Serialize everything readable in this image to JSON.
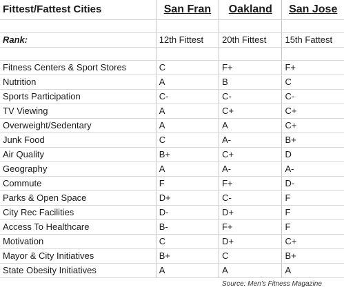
{
  "header": {
    "title": "Fittest/Fattest Cities",
    "cities": [
      "San Fran",
      "Oakland",
      "San Jose"
    ]
  },
  "rank": {
    "label": "Rank:",
    "values": [
      "12th Fittest",
      "20th Fittest",
      "15th Fattest"
    ]
  },
  "rows": [
    {
      "category": "Fitness Centers & Sport Stores",
      "grades": [
        "C",
        "F+",
        "F+"
      ]
    },
    {
      "category": "Nutrition",
      "grades": [
        "A",
        "B",
        "C"
      ]
    },
    {
      "category": "Sports Participation",
      "grades": [
        "C-",
        "C-",
        "C-"
      ]
    },
    {
      "category": "TV Viewing",
      "grades": [
        "A",
        "C+",
        "C+"
      ]
    },
    {
      "category": "Overweight/Sedentary",
      "grades": [
        "A",
        "A",
        "C+"
      ]
    },
    {
      "category": "Junk Food",
      "grades": [
        "C",
        "A-",
        "B+"
      ]
    },
    {
      "category": "Air Quality",
      "grades": [
        "B+",
        "C+",
        "D"
      ]
    },
    {
      "category": "Geography",
      "grades": [
        "A",
        "A-",
        "A-"
      ]
    },
    {
      "category": "Commute",
      "grades": [
        "F",
        "F+",
        "D-"
      ]
    },
    {
      "category": "Parks & Open Space",
      "grades": [
        "D+",
        "C-",
        "F"
      ]
    },
    {
      "category": "City Rec Facilities",
      "grades": [
        "D-",
        "D+",
        "F"
      ]
    },
    {
      "category": "Access To Healthcare",
      "grades": [
        "B-",
        "F+",
        "F"
      ]
    },
    {
      "category": "Motivation",
      "grades": [
        "C",
        "D+",
        "C+"
      ]
    },
    {
      "category": "Mayor & City Initiatives",
      "grades": [
        "B+",
        "C",
        "B+"
      ]
    },
    {
      "category": "State Obesity Initiatives",
      "grades": [
        "A",
        "A",
        "A"
      ]
    }
  ],
  "source": "Source:  Men’s Fitness Magazine"
}
